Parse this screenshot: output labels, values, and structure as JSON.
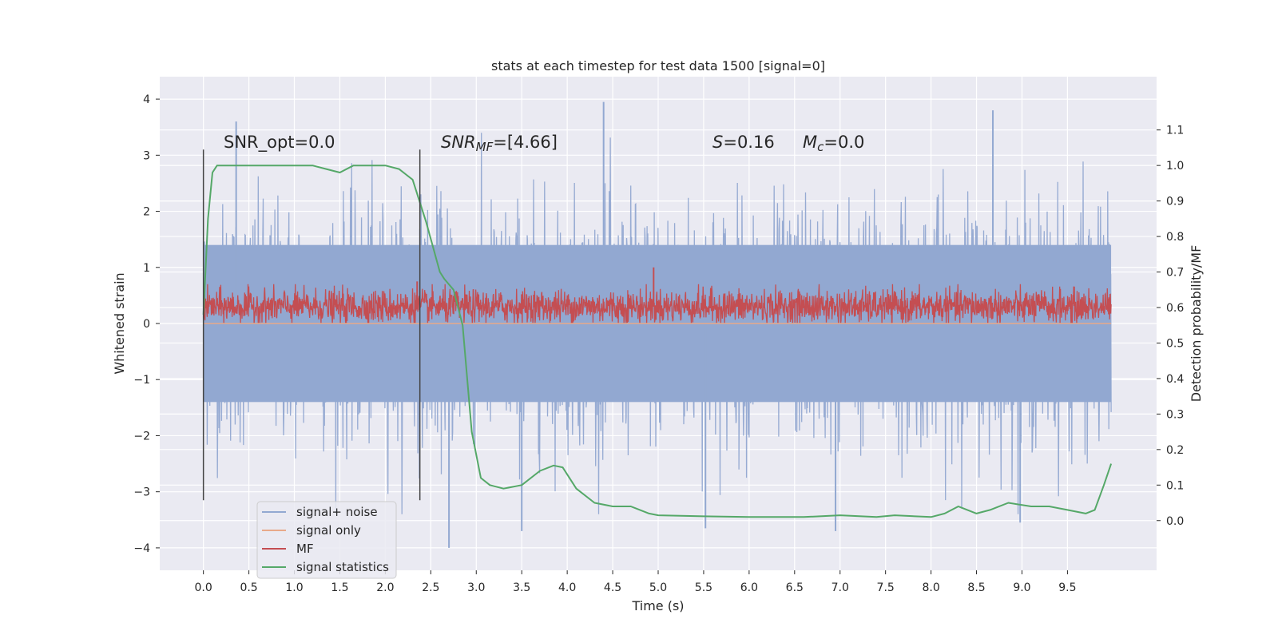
{
  "chart_data": {
    "type": "line",
    "title": "stats at each timestep for test data 1500 [signal=0]",
    "xlabel": "Time (s)",
    "ylabel": "Whitened strain",
    "y2label": "Detection probability/MF",
    "xlim": [
      -0.48,
      10.48
    ],
    "ylim": [
      -4.4,
      4.4
    ],
    "y2lim": [
      -0.14,
      1.25
    ],
    "grid": true,
    "x_ticks": [
      "0.0",
      "0.5",
      "1.0",
      "1.5",
      "2.0",
      "2.5",
      "3.0",
      "3.5",
      "4.0",
      "4.5",
      "5.0",
      "5.5",
      "6.0",
      "6.5",
      "7.0",
      "7.5",
      "8.0",
      "8.5",
      "9.0",
      "9.5"
    ],
    "y_ticks": [
      "4",
      "3",
      "2",
      "1",
      "0",
      "−1",
      "−2",
      "−3",
      "−4"
    ],
    "y2_ticks": [
      "1.1",
      "1.0",
      "0.9",
      "0.8",
      "0.7",
      "0.6",
      "0.5",
      "0.4",
      "0.3",
      "0.2",
      "0.1",
      "0.0"
    ],
    "annotations": {
      "snr_opt": "SNR_opt=0.0",
      "snr_mf_base": "SNR",
      "snr_mf_sub": "MF",
      "snr_mf_value": "=[4.66]",
      "s_symbol": "S",
      "s_value": "=0.16",
      "mc_symbol": "M",
      "mc_sub": "c",
      "mc_value": "=0.0"
    },
    "vlines": [
      0.0,
      2.38
    ],
    "legend_position": "lower-left",
    "series": [
      {
        "name": "signal+ noise",
        "color": "#92a8d1",
        "axis": "left",
        "duration": 9.98,
        "band": [
          -1.4,
          1.4
        ],
        "notable_peaks": [
          [
            0.36,
            3.6
          ],
          [
            4.4,
            3.95
          ],
          [
            8.68,
            3.8
          ],
          [
            2.7,
            -4.0
          ],
          [
            3.5,
            -3.7
          ],
          [
            6.95,
            -3.7
          ],
          [
            8.98,
            -3.55
          ],
          [
            5.52,
            -3.65
          ]
        ]
      },
      {
        "name": "signal only",
        "color": "#e8a98a",
        "axis": "left",
        "x": [
          0.0,
          9.98
        ],
        "y": [
          0.0,
          0.0
        ]
      },
      {
        "name": "MF",
        "color": "#c44e52",
        "axis": "left",
        "duration": 9.98,
        "band": [
          0.0,
          0.6
        ],
        "notable_peaks": [
          [
            4.95,
            1.0
          ],
          [
            2.35,
            0.75
          ]
        ]
      },
      {
        "name": "signal statistics",
        "color": "#55a868",
        "axis": "right",
        "x": [
          0.0,
          0.05,
          0.1,
          0.15,
          0.3,
          0.6,
          1.0,
          1.2,
          1.35,
          1.5,
          1.65,
          1.8,
          2.0,
          2.15,
          2.3,
          2.45,
          2.6,
          2.65,
          2.75,
          2.85,
          2.95,
          3.05,
          3.15,
          3.3,
          3.5,
          3.7,
          3.85,
          3.95,
          4.1,
          4.3,
          4.5,
          4.7,
          4.9,
          5.0,
          5.5,
          6.0,
          6.2,
          6.6,
          7.0,
          7.4,
          7.6,
          8.0,
          8.15,
          8.3,
          8.5,
          8.65,
          8.85,
          9.1,
          9.3,
          9.5,
          9.7,
          9.8,
          9.9,
          9.98
        ],
        "y": [
          0.58,
          0.85,
          0.98,
          1.0,
          1.0,
          1.0,
          1.0,
          1.0,
          0.99,
          0.98,
          1.0,
          1.0,
          1.0,
          0.99,
          0.96,
          0.84,
          0.7,
          0.68,
          0.65,
          0.55,
          0.25,
          0.12,
          0.1,
          0.09,
          0.1,
          0.14,
          0.155,
          0.15,
          0.09,
          0.05,
          0.04,
          0.04,
          0.02,
          0.015,
          0.012,
          0.01,
          0.01,
          0.01,
          0.015,
          0.01,
          0.015,
          0.01,
          0.02,
          0.04,
          0.02,
          0.03,
          0.05,
          0.04,
          0.04,
          0.03,
          0.02,
          0.03,
          0.1,
          0.16
        ]
      }
    ]
  }
}
